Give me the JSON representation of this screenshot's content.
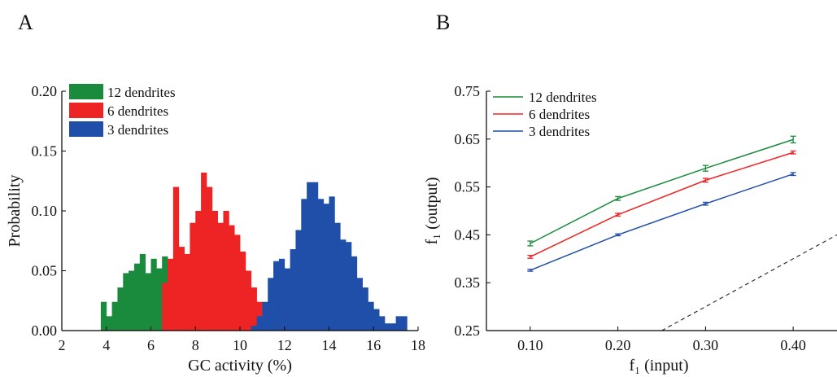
{
  "panels": {
    "a": {
      "label": "A"
    },
    "b": {
      "label": "B"
    }
  },
  "chart_data": [
    {
      "type": "bar",
      "subtype": "histogram",
      "xlabel": "GC activity (%)",
      "ylabel": "Probability",
      "xlim": [
        2,
        18
      ],
      "ylim": [
        0,
        0.2
      ],
      "xticks": [
        "2",
        "4",
        "6",
        "8",
        "10",
        "12",
        "14",
        "16",
        "18"
      ],
      "yticks": [
        "0.00",
        "0.05",
        "0.10",
        "0.15",
        "0.20"
      ],
      "bin_width": 0.25,
      "legend_position": "top-left",
      "series": [
        {
          "name": "12 dendrites",
          "color": "#1a8a3c",
          "x_start": 3.75,
          "values": [
            0.024,
            0.012,
            0.024,
            0.036,
            0.048,
            0.05,
            0.056,
            0.064,
            0.048,
            0.06,
            0.052,
            0.062,
            0.05,
            0.04,
            0.036,
            0.024,
            0.018,
            0.012,
            0.024,
            0.012,
            0.012,
            0.008,
            0.006,
            0.012
          ]
        },
        {
          "name": "6 dendrites",
          "color": "#ee2424",
          "x_start": 6.5,
          "values": [
            0.04,
            0.06,
            0.12,
            0.07,
            0.064,
            0.09,
            0.1,
            0.132,
            0.12,
            0.1,
            0.09,
            0.1,
            0.088,
            0.08,
            0.066,
            0.05,
            0.036,
            0.024,
            0.016,
            0.01,
            0.006,
            0.004,
            0.004
          ]
        },
        {
          "name": "3 dendrites",
          "color": "#1f4fa8",
          "x_start": 10.5,
          "values": [
            0.004,
            0.012,
            0.024,
            0.044,
            0.058,
            0.06,
            0.052,
            0.068,
            0.084,
            0.11,
            0.124,
            0.124,
            0.11,
            0.106,
            0.112,
            0.09,
            0.076,
            0.074,
            0.062,
            0.044,
            0.036,
            0.024,
            0.018,
            0.012,
            0.006,
            0.006,
            0.012,
            0.012
          ]
        }
      ]
    },
    {
      "type": "line",
      "xlabel": "f₁ (input)",
      "ylabel": "f₁ (output)",
      "xlim": [
        0.05,
        0.45
      ],
      "ylim": [
        0.25,
        0.75
      ],
      "x": [
        0.1,
        0.2,
        0.3,
        0.4
      ],
      "xticks": [
        "0.10",
        "0.20",
        "0.30",
        "0.40"
      ],
      "yticks": [
        "0.25",
        "0.35",
        "0.45",
        "0.55",
        "0.65",
        "0.75"
      ],
      "legend_position": "top-left",
      "series": [
        {
          "name": "12 dendrites",
          "color": "#1a8a3c",
          "values": [
            0.432,
            0.526,
            0.589,
            0.649
          ],
          "errors": [
            0.005,
            0.004,
            0.006,
            0.007
          ]
        },
        {
          "name": "6 dendrites",
          "color": "#ee2424",
          "values": [
            0.404,
            0.492,
            0.564,
            0.622
          ],
          "errors": [
            0.003,
            0.003,
            0.004,
            0.003
          ]
        },
        {
          "name": "3 dendrites",
          "color": "#1f4fa8",
          "values": [
            0.376,
            0.45,
            0.515,
            0.577
          ],
          "errors": [
            0.002,
            0.002,
            0.003,
            0.003
          ]
        }
      ],
      "reference_line": {
        "style": "dashed",
        "color": "#333333",
        "from": [
          0.25,
          0.25
        ],
        "to": [
          0.45,
          0.45
        ]
      }
    }
  ]
}
